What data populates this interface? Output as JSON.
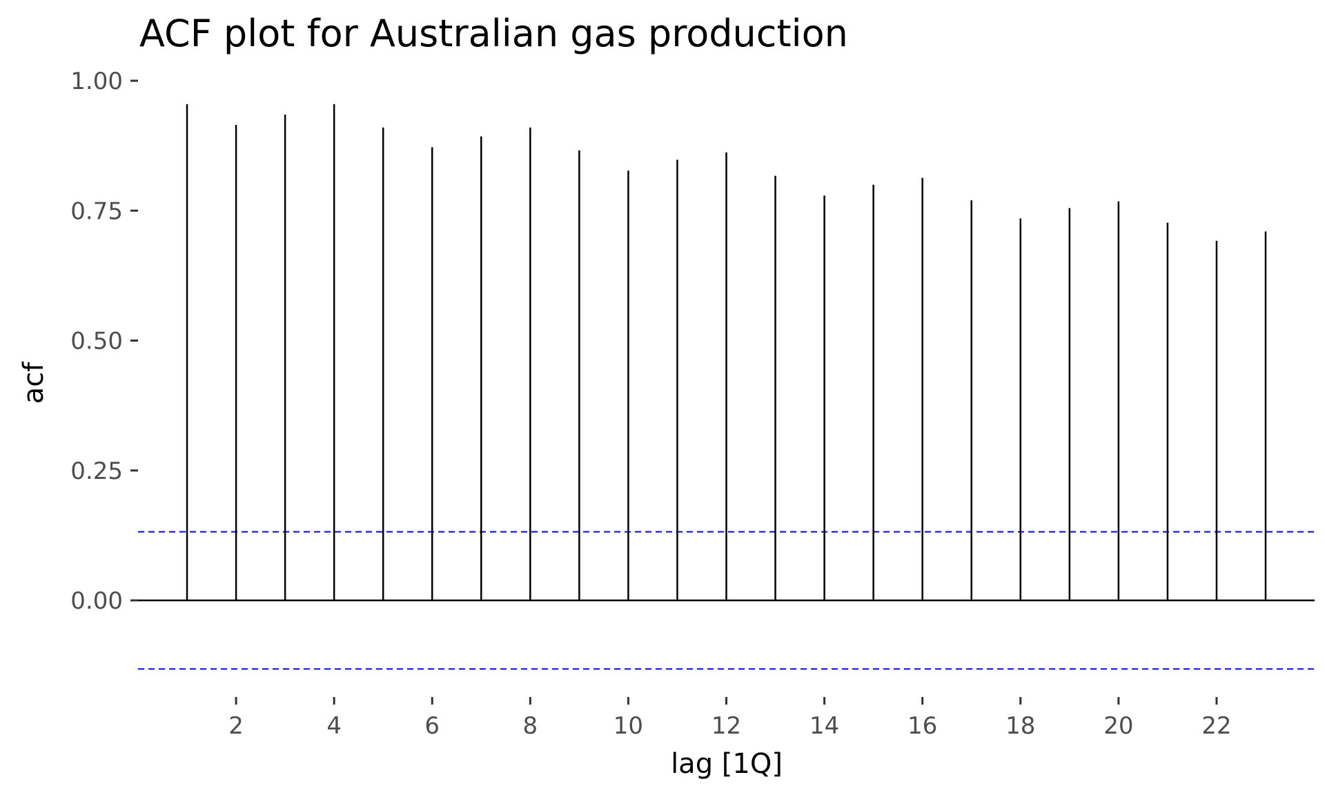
{
  "chart_data": {
    "type": "bar",
    "title": "ACF plot for Australian gas production",
    "xlabel": "lag [1Q]",
    "ylabel": "acf",
    "x": [
      1,
      2,
      3,
      4,
      5,
      6,
      7,
      8,
      9,
      10,
      11,
      12,
      13,
      14,
      15,
      16,
      17,
      18,
      19,
      20,
      21,
      22,
      23
    ],
    "values": [
      0.955,
      0.915,
      0.935,
      0.955,
      0.91,
      0.872,
      0.893,
      0.91,
      0.866,
      0.827,
      0.848,
      0.862,
      0.817,
      0.779,
      0.8,
      0.813,
      0.77,
      0.735,
      0.755,
      0.768,
      0.727,
      0.692,
      0.71
    ],
    "xlim": [
      0,
      24
    ],
    "ylim": [
      -0.15,
      1.0
    ],
    "x_ticks": [
      2,
      4,
      6,
      8,
      10,
      12,
      14,
      16,
      18,
      20,
      22
    ],
    "x_tick_labels": [
      "2",
      "4",
      "6",
      "8",
      "10",
      "12",
      "14",
      "16",
      "18",
      "20",
      "22"
    ],
    "y_ticks": [
      0.0,
      0.25,
      0.5,
      0.75,
      1.0
    ],
    "y_tick_labels": [
      "0.00",
      "0.25",
      "0.50",
      "0.75",
      "1.00"
    ],
    "confidence_bound": 0.132,
    "grid": false,
    "legend": "none",
    "colors": {
      "bars": "#000000",
      "zero_line": "#000000",
      "confidence_lines": "#0000ff",
      "tick_labels": "#4d4d4d",
      "ticks": "#333333"
    }
  }
}
